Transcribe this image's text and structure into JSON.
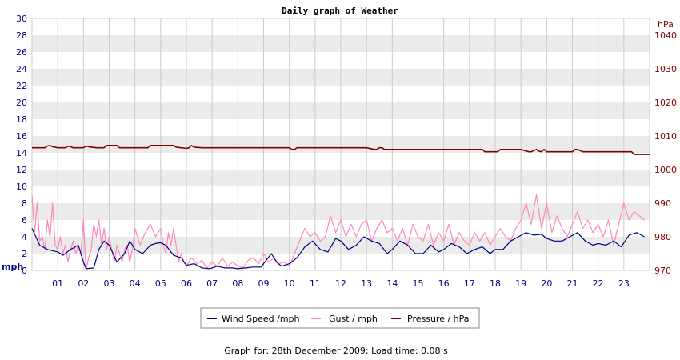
{
  "chart_data": {
    "type": "line",
    "title": "Daily graph of Weather",
    "left_axis": {
      "unit": "mph",
      "ylim": [
        0,
        30
      ],
      "ticks": [
        "0",
        "2",
        "4",
        "6",
        "8",
        "10",
        "12",
        "14",
        "16",
        "18",
        "20",
        "22",
        "24",
        "26",
        "28",
        "30"
      ]
    },
    "right_axis": {
      "unit": "hPa",
      "ylim": [
        970,
        1045
      ],
      "ticks": [
        "970",
        "980",
        "990",
        "1000",
        "1010",
        "1020",
        "1030",
        "1040"
      ]
    },
    "x_axis": {
      "unit": "hour",
      "xlim": [
        0,
        24
      ],
      "ticks": [
        "01",
        "02",
        "03",
        "04",
        "05",
        "06",
        "07",
        "08",
        "09",
        "10",
        "11",
        "12",
        "13",
        "14",
        "15",
        "16",
        "17",
        "18",
        "19",
        "20",
        "21",
        "22",
        "23"
      ]
    },
    "grid": true,
    "legend_position": "bottom-center",
    "series": [
      {
        "name": "Wind Speed /mph",
        "axis": "left",
        "color": "#000080",
        "x": [
          0.0,
          0.3,
          0.6,
          1.0,
          1.2,
          1.5,
          1.8,
          2.0,
          2.1,
          2.4,
          2.6,
          2.8,
          3.0,
          3.3,
          3.6,
          3.8,
          4.0,
          4.3,
          4.6,
          4.8,
          5.0,
          5.2,
          5.5,
          5.8,
          6.0,
          6.3,
          6.6,
          6.9,
          7.2,
          7.5,
          7.8,
          8.0,
          8.3,
          8.6,
          8.9,
          9.1,
          9.3,
          9.5,
          9.7,
          10.0,
          10.3,
          10.6,
          10.9,
          11.2,
          11.5,
          11.8,
          12.0,
          12.3,
          12.6,
          12.9,
          13.2,
          13.5,
          13.8,
          14.0,
          14.3,
          14.6,
          14.9,
          15.2,
          15.5,
          15.8,
          16.0,
          16.3,
          16.6,
          16.9,
          17.2,
          17.5,
          17.8,
          18.0,
          18.3,
          18.6,
          18.9,
          19.2,
          19.5,
          19.8,
          20.0,
          20.3,
          20.6,
          20.9,
          21.2,
          21.5,
          21.8,
          22.0,
          22.3,
          22.6,
          22.9,
          23.2,
          23.5,
          23.8
        ],
        "values": [
          5.0,
          3.0,
          2.5,
          2.2,
          1.8,
          2.5,
          3.0,
          1.0,
          0.2,
          0.3,
          2.5,
          3.5,
          3.0,
          1.0,
          2.0,
          3.5,
          2.5,
          2.0,
          3.0,
          3.2,
          3.3,
          3.0,
          1.8,
          1.5,
          0.6,
          0.8,
          0.3,
          0.2,
          0.5,
          0.3,
          0.3,
          0.2,
          0.3,
          0.4,
          0.4,
          1.2,
          2.0,
          1.0,
          0.5,
          0.8,
          1.5,
          2.8,
          3.5,
          2.5,
          2.2,
          3.8,
          3.5,
          2.5,
          3.0,
          4.0,
          3.5,
          3.2,
          2.0,
          2.5,
          3.5,
          3.0,
          2.0,
          2.0,
          3.0,
          2.2,
          2.5,
          3.2,
          2.8,
          2.0,
          2.5,
          2.8,
          2.0,
          2.5,
          2.5,
          3.5,
          4.0,
          4.5,
          4.2,
          4.3,
          3.8,
          3.5,
          3.5,
          4.0,
          4.5,
          3.5,
          3.0,
          3.2,
          3.0,
          3.5,
          2.8,
          4.2,
          4.5,
          4.0
        ]
      },
      {
        "name": "Gust / mph",
        "axis": "left",
        "color": "#ff88bb",
        "x": [
          0.0,
          0.1,
          0.2,
          0.3,
          0.4,
          0.5,
          0.6,
          0.7,
          0.8,
          0.9,
          1.0,
          1.1,
          1.2,
          1.3,
          1.4,
          1.5,
          1.6,
          1.7,
          1.8,
          1.9,
          2.0,
          2.1,
          2.2,
          2.3,
          2.4,
          2.5,
          2.6,
          2.7,
          2.8,
          2.9,
          3.0,
          3.1,
          3.2,
          3.3,
          3.4,
          3.5,
          3.6,
          3.7,
          3.8,
          3.9,
          4.0,
          4.2,
          4.4,
          4.6,
          4.8,
          5.0,
          5.1,
          5.2,
          5.3,
          5.4,
          5.5,
          5.6,
          5.7,
          5.8,
          5.9,
          6.0,
          6.2,
          6.4,
          6.6,
          6.8,
          7.0,
          7.2,
          7.4,
          7.6,
          7.8,
          8.0,
          8.2,
          8.4,
          8.6,
          8.8,
          9.0,
          9.2,
          9.4,
          9.6,
          9.8,
          10.0,
          10.2,
          10.4,
          10.6,
          10.8,
          11.0,
          11.2,
          11.4,
          11.6,
          11.8,
          12.0,
          12.2,
          12.4,
          12.6,
          12.8,
          13.0,
          13.2,
          13.4,
          13.6,
          13.8,
          14.0,
          14.2,
          14.4,
          14.6,
          14.8,
          15.0,
          15.2,
          15.4,
          15.6,
          15.8,
          16.0,
          16.2,
          16.4,
          16.6,
          16.8,
          17.0,
          17.2,
          17.4,
          17.6,
          17.8,
          18.0,
          18.2,
          18.4,
          18.6,
          18.8,
          19.0,
          19.2,
          19.4,
          19.6,
          19.8,
          20.0,
          20.2,
          20.4,
          20.6,
          20.8,
          21.0,
          21.2,
          21.4,
          21.6,
          21.8,
          22.0,
          22.2,
          22.4,
          22.6,
          22.8,
          23.0,
          23.2,
          23.4,
          23.6,
          23.8
        ],
        "values": [
          9.0,
          4.5,
          8.0,
          3.5,
          4.0,
          2.5,
          6.0,
          4.0,
          8.0,
          3.0,
          2.5,
          4.0,
          2.0,
          3.0,
          1.0,
          2.5,
          3.5,
          2.0,
          3.0,
          2.0,
          6.0,
          0.0,
          1.5,
          2.5,
          5.5,
          4.0,
          6.0,
          3.0,
          5.0,
          2.5,
          4.0,
          2.5,
          1.0,
          3.0,
          2.0,
          1.0,
          2.5,
          3.0,
          1.0,
          2.5,
          5.0,
          3.0,
          4.5,
          5.5,
          4.0,
          5.0,
          3.0,
          2.0,
          4.5,
          3.0,
          5.0,
          3.0,
          1.0,
          2.0,
          1.0,
          0.5,
          1.5,
          0.8,
          1.2,
          0.3,
          1.0,
          0.5,
          1.5,
          0.5,
          1.0,
          0.5,
          0.3,
          1.2,
          1.5,
          0.8,
          2.0,
          1.0,
          1.5,
          0.8,
          1.0,
          0.5,
          2.0,
          3.5,
          5.0,
          4.0,
          4.5,
          3.5,
          4.0,
          6.5,
          4.5,
          6.0,
          4.0,
          5.5,
          4.0,
          5.5,
          6.0,
          3.5,
          5.0,
          6.0,
          4.5,
          5.0,
          3.5,
          5.0,
          3.0,
          5.5,
          4.0,
          3.5,
          5.5,
          3.0,
          4.5,
          3.5,
          5.5,
          3.0,
          4.5,
          3.5,
          3.0,
          4.5,
          3.5,
          4.5,
          3.0,
          4.0,
          5.0,
          4.0,
          3.5,
          5.0,
          6.0,
          8.0,
          5.5,
          9.0,
          5.0,
          8.0,
          4.5,
          6.5,
          5.0,
          4.0,
          5.5,
          7.0,
          5.0,
          6.0,
          4.5,
          5.5,
          4.0,
          6.0,
          3.0,
          5.5,
          8.0,
          6.0,
          7.0,
          6.5,
          6.0
        ]
      },
      {
        "name": "Pressure / hPa",
        "axis": "right",
        "color": "#800000",
        "x": [
          0.0,
          0.5,
          0.6,
          0.7,
          0.8,
          1.0,
          1.3,
          1.4,
          1.5,
          1.6,
          2.0,
          2.1,
          2.2,
          2.5,
          2.8,
          2.9,
          3.3,
          3.4,
          4.0,
          4.5,
          4.6,
          5.5,
          5.6,
          6.0,
          6.1,
          6.2,
          6.3,
          6.6,
          7.0,
          8.0,
          9.0,
          10.0,
          10.1,
          10.2,
          10.3,
          11.0,
          12.0,
          13.0,
          13.3,
          13.4,
          13.5,
          13.6,
          13.7,
          13.8,
          14.0,
          15.0,
          16.0,
          17.0,
          17.5,
          17.6,
          18.0,
          18.1,
          18.2,
          19.0,
          19.3,
          19.4,
          19.6,
          19.7,
          19.8,
          19.9,
          20.0,
          20.5,
          21.0,
          21.1,
          21.2,
          21.4,
          22.0,
          23.0,
          23.3,
          23.4,
          24.0
        ],
        "values": [
          1006.5,
          1006.5,
          1007.0,
          1007.2,
          1006.8,
          1006.5,
          1006.5,
          1007.0,
          1006.8,
          1006.5,
          1006.5,
          1007.0,
          1006.8,
          1006.5,
          1006.5,
          1007.2,
          1007.2,
          1006.5,
          1006.5,
          1006.5,
          1007.2,
          1007.2,
          1006.7,
          1006.3,
          1006.5,
          1007.2,
          1006.7,
          1006.5,
          1006.5,
          1006.5,
          1006.5,
          1006.5,
          1006.0,
          1006.0,
          1006.5,
          1006.5,
          1006.5,
          1006.5,
          1006.0,
          1006.0,
          1006.5,
          1006.5,
          1006.0,
          1006.0,
          1006.0,
          1006.0,
          1006.0,
          1006.0,
          1006.0,
          1005.3,
          1005.3,
          1005.3,
          1006.0,
          1006.0,
          1005.3,
          1005.3,
          1006.0,
          1005.5,
          1005.3,
          1006.0,
          1005.3,
          1005.3,
          1005.3,
          1006.0,
          1006.0,
          1005.3,
          1005.3,
          1005.3,
          1005.3,
          1004.5,
          1004.5
        ]
      }
    ]
  },
  "footer": {
    "text": "Graph for: 28th December 2009; Load time: 0.08 s"
  }
}
